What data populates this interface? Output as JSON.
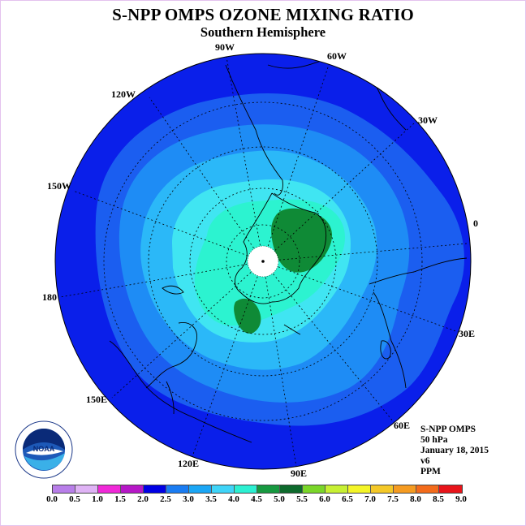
{
  "title": "S-NPP OMPS OZONE MIXING RATIO",
  "subtitle": "Southern Hemisphere",
  "longitude_labels": [
    "90W",
    "60W",
    "120W",
    "30W",
    "150W",
    "0",
    "180",
    "30E",
    "150E",
    "60E",
    "120E",
    "90E"
  ],
  "info": {
    "instrument": "S-NPP OMPS",
    "level": "50 hPa",
    "date": "January 18, 2015",
    "version": "v6",
    "units": "PPM"
  },
  "logo": {
    "text": "NOAA",
    "icon": "noaa-logo"
  },
  "colorbar": {
    "ticks": [
      "0.0",
      "0.5",
      "1.0",
      "1.5",
      "2.0",
      "2.5",
      "3.0",
      "3.5",
      "4.0",
      "4.5",
      "5.0",
      "5.5",
      "6.0",
      "6.5",
      "7.0",
      "7.5",
      "8.0",
      "8.5",
      "9.0"
    ],
    "colors": [
      "#b87ee9",
      "#dfb3f5",
      "#f029d8",
      "#b617c7",
      "#0000e4",
      "#1a7cf2",
      "#1ba6f5",
      "#3fd4f8",
      "#2cf0d2",
      "#179940",
      "#0d6a2c",
      "#7ad629",
      "#c7f033",
      "#f4f528",
      "#f4c828",
      "#f59b21",
      "#f36b1b",
      "#e8141a",
      "#8b5a3a"
    ]
  },
  "colors": {
    "deep_blue": "#0a1fea",
    "blue_2_0": "#1b5ef0",
    "blue_2_5": "#1e8cf5",
    "blue_3_0": "#2bb8f8",
    "cyan_3_5": "#40e5f2",
    "aqua_4_0": "#2cf3d0",
    "green_4_5": "#0f8a36"
  }
}
